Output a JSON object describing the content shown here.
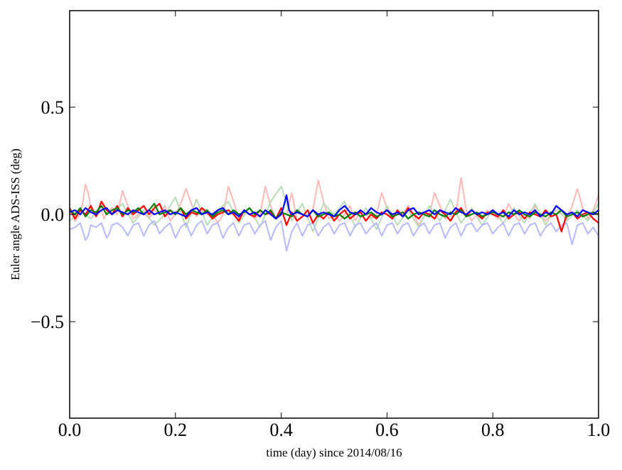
{
  "chart_data": {
    "type": "line",
    "title": "",
    "xlabel": "time (day) since 2014/08/16",
    "ylabel": "Euler angle ADS-ISS (deg)",
    "xlim": [
      0.0,
      1.0
    ],
    "ylim": [
      -0.95,
      0.95
    ],
    "x_ticks": [
      0.0,
      0.2,
      0.4,
      0.6,
      0.8,
      1.0
    ],
    "x_tick_labels": [
      "0.0",
      "0.2",
      "0.4",
      "0.6",
      "0.8",
      "1.0"
    ],
    "y_ticks": [
      0.5,
      0.0,
      -0.5
    ],
    "y_tick_labels": [
      "0.5",
      "0.0",
      "−0.5"
    ],
    "grid": false,
    "legend": "none",
    "series": [
      {
        "color": "#ffb8b8",
        "x": [
          0.0,
          0.01,
          0.02,
          0.025,
          0.03,
          0.035,
          0.04,
          0.05,
          0.06,
          0.065,
          0.07,
          0.08,
          0.09,
          0.1,
          0.11,
          0.12,
          0.13,
          0.14,
          0.15,
          0.16,
          0.17,
          0.18,
          0.19,
          0.2,
          0.21,
          0.22,
          0.23,
          0.24,
          0.25,
          0.26,
          0.27,
          0.28,
          0.29,
          0.3,
          0.31,
          0.32,
          0.33,
          0.34,
          0.35,
          0.36,
          0.37,
          0.38,
          0.39,
          0.4,
          0.41,
          0.42,
          0.43,
          0.44,
          0.45,
          0.46,
          0.47,
          0.48,
          0.49,
          0.5,
          0.51,
          0.52,
          0.53,
          0.54,
          0.55,
          0.56,
          0.57,
          0.58,
          0.59,
          0.6,
          0.61,
          0.62,
          0.63,
          0.64,
          0.65,
          0.66,
          0.67,
          0.68,
          0.69,
          0.7,
          0.71,
          0.72,
          0.73,
          0.74,
          0.75,
          0.76,
          0.77,
          0.78,
          0.79,
          0.8,
          0.81,
          0.82,
          0.83,
          0.84,
          0.85,
          0.86,
          0.87,
          0.88,
          0.89,
          0.9,
          0.91,
          0.92,
          0.93,
          0.94,
          0.95,
          0.96,
          0.97,
          0.98,
          0.99,
          1.0
        ],
        "y": [
          0.02,
          -0.03,
          0.0,
          0.06,
          0.14,
          0.1,
          0.03,
          -0.01,
          0.02,
          -0.02,
          0.01,
          0.03,
          0.0,
          0.11,
          0.04,
          -0.02,
          0.0,
          0.01,
          -0.02,
          0.02,
          0.0,
          0.04,
          -0.03,
          0.0,
          0.05,
          0.12,
          0.05,
          -0.01,
          0.02,
          0.0,
          0.0,
          -0.04,
          0.0,
          0.13,
          0.06,
          -0.02,
          0.01,
          0.0,
          -0.02,
          0.0,
          0.13,
          0.04,
          -0.02,
          0.01,
          0.0,
          0.1,
          -0.03,
          -0.01,
          0.0,
          0.02,
          0.16,
          0.06,
          -0.02,
          0.0,
          -0.03,
          0.0,
          0.04,
          -0.03,
          0.02,
          0.0,
          -0.02,
          0.0,
          0.1,
          0.03,
          -0.02,
          0.0,
          0.0,
          0.04,
          0.0,
          -0.05,
          -0.01,
          0.0,
          0.1,
          0.04,
          -0.02,
          -0.01,
          0.0,
          0.17,
          0.02,
          -0.03,
          0.0,
          -0.01,
          0.02,
          0.0,
          -0.02,
          -0.01,
          0.05,
          0.0,
          -0.03,
          0.0,
          -0.02,
          0.04,
          0.0,
          -0.03,
          0.0,
          0.02,
          0.0,
          -0.02,
          0.04,
          0.12,
          0.03,
          -0.02,
          0.02,
          0.09
        ]
      },
      {
        "color": "#b8dcb8",
        "x": [
          0.0,
          0.02,
          0.04,
          0.06,
          0.08,
          0.1,
          0.12,
          0.14,
          0.16,
          0.18,
          0.2,
          0.22,
          0.24,
          0.26,
          0.28,
          0.3,
          0.32,
          0.34,
          0.36,
          0.38,
          0.4,
          0.42,
          0.44,
          0.46,
          0.48,
          0.5,
          0.52,
          0.54,
          0.56,
          0.58,
          0.6,
          0.62,
          0.64,
          0.66,
          0.68,
          0.7,
          0.72,
          0.74,
          0.76,
          0.78,
          0.8,
          0.82,
          0.84,
          0.86,
          0.88,
          0.9,
          0.92,
          0.94,
          0.96,
          0.98,
          1.0
        ],
        "y": [
          -0.03,
          0.02,
          -0.02,
          0.04,
          0.0,
          0.05,
          -0.04,
          0.02,
          -0.05,
          0.0,
          0.08,
          -0.06,
          0.07,
          -0.05,
          0.02,
          0.06,
          -0.04,
          0.03,
          -0.06,
          0.06,
          0.13,
          -0.03,
          0.05,
          -0.08,
          0.05,
          0.0,
          0.06,
          -0.06,
          0.03,
          -0.07,
          0.04,
          -0.05,
          0.02,
          -0.06,
          0.04,
          -0.03,
          0.07,
          -0.04,
          0.03,
          -0.05,
          0.02,
          -0.04,
          0.03,
          -0.04,
          0.05,
          -0.05,
          0.04,
          -0.03,
          0.02,
          -0.03,
          0.05
        ]
      },
      {
        "color": "#b8b8ff",
        "x": [
          0.0,
          0.01,
          0.02,
          0.03,
          0.035,
          0.04,
          0.05,
          0.06,
          0.07,
          0.075,
          0.08,
          0.09,
          0.1,
          0.11,
          0.12,
          0.13,
          0.14,
          0.15,
          0.16,
          0.17,
          0.18,
          0.19,
          0.2,
          0.21,
          0.22,
          0.23,
          0.24,
          0.25,
          0.26,
          0.27,
          0.28,
          0.29,
          0.3,
          0.31,
          0.32,
          0.33,
          0.34,
          0.35,
          0.36,
          0.37,
          0.38,
          0.39,
          0.4,
          0.41,
          0.42,
          0.43,
          0.44,
          0.45,
          0.46,
          0.47,
          0.48,
          0.49,
          0.5,
          0.51,
          0.52,
          0.53,
          0.54,
          0.55,
          0.56,
          0.57,
          0.58,
          0.59,
          0.6,
          0.61,
          0.62,
          0.63,
          0.64,
          0.65,
          0.66,
          0.67,
          0.68,
          0.69,
          0.7,
          0.71,
          0.72,
          0.73,
          0.74,
          0.75,
          0.76,
          0.77,
          0.78,
          0.79,
          0.8,
          0.81,
          0.82,
          0.83,
          0.84,
          0.85,
          0.86,
          0.87,
          0.88,
          0.89,
          0.9,
          0.91,
          0.92,
          0.93,
          0.94,
          0.95,
          0.96,
          0.97,
          0.98,
          0.99,
          1.0
        ],
        "y": [
          -0.07,
          -0.06,
          -0.04,
          -0.12,
          -0.1,
          -0.05,
          -0.06,
          -0.04,
          -0.11,
          -0.09,
          -0.05,
          -0.04,
          -0.06,
          -0.1,
          -0.05,
          -0.04,
          -0.1,
          -0.05,
          -0.03,
          -0.09,
          -0.06,
          -0.04,
          -0.11,
          -0.06,
          -0.04,
          -0.1,
          -0.05,
          -0.03,
          -0.09,
          -0.05,
          -0.04,
          -0.11,
          -0.06,
          -0.04,
          -0.1,
          -0.05,
          -0.04,
          -0.09,
          -0.05,
          -0.03,
          -0.12,
          -0.06,
          -0.03,
          -0.17,
          -0.08,
          -0.04,
          -0.1,
          -0.05,
          -0.04,
          -0.1,
          -0.06,
          -0.04,
          -0.09,
          -0.05,
          -0.04,
          -0.1,
          -0.05,
          -0.04,
          -0.09,
          -0.06,
          -0.04,
          -0.1,
          -0.05,
          -0.04,
          -0.09,
          -0.05,
          -0.04,
          -0.1,
          -0.06,
          -0.04,
          -0.09,
          -0.05,
          -0.04,
          -0.11,
          -0.06,
          -0.04,
          -0.1,
          -0.05,
          -0.04,
          -0.08,
          -0.05,
          -0.04,
          -0.09,
          -0.06,
          -0.04,
          -0.1,
          -0.05,
          -0.04,
          -0.09,
          -0.05,
          -0.04,
          -0.1,
          -0.06,
          -0.04,
          -0.08,
          -0.05,
          -0.04,
          -0.14,
          -0.05,
          -0.04,
          -0.09,
          -0.06,
          -0.1
        ]
      },
      {
        "color": "#ff0000",
        "x": [
          0.0,
          0.01,
          0.02,
          0.03,
          0.04,
          0.05,
          0.06,
          0.07,
          0.08,
          0.09,
          0.1,
          0.11,
          0.12,
          0.13,
          0.14,
          0.15,
          0.16,
          0.17,
          0.18,
          0.19,
          0.2,
          0.21,
          0.22,
          0.23,
          0.24,
          0.25,
          0.26,
          0.27,
          0.28,
          0.29,
          0.3,
          0.31,
          0.32,
          0.33,
          0.34,
          0.35,
          0.36,
          0.37,
          0.38,
          0.39,
          0.4,
          0.41,
          0.42,
          0.43,
          0.44,
          0.45,
          0.46,
          0.47,
          0.48,
          0.49,
          0.5,
          0.51,
          0.52,
          0.53,
          0.54,
          0.55,
          0.56,
          0.57,
          0.58,
          0.59,
          0.6,
          0.61,
          0.62,
          0.63,
          0.64,
          0.65,
          0.66,
          0.67,
          0.68,
          0.69,
          0.7,
          0.71,
          0.72,
          0.73,
          0.74,
          0.75,
          0.76,
          0.77,
          0.78,
          0.79,
          0.8,
          0.81,
          0.82,
          0.83,
          0.84,
          0.85,
          0.86,
          0.87,
          0.88,
          0.89,
          0.9,
          0.91,
          0.92,
          0.93,
          0.94,
          0.95,
          0.96,
          0.97,
          0.98,
          0.99,
          1.0
        ],
        "y": [
          0.03,
          -0.02,
          0.02,
          0.0,
          0.04,
          -0.01,
          0.06,
          0.02,
          0.0,
          0.04,
          -0.01,
          0.03,
          0.0,
          0.02,
          0.04,
          0.0,
          0.03,
          0.05,
          -0.01,
          0.02,
          0.0,
          0.03,
          -0.02,
          0.01,
          0.0,
          0.03,
          0.01,
          -0.02,
          0.0,
          0.01,
          0.02,
          0.0,
          -0.03,
          0.02,
          0.0,
          -0.01,
          0.02,
          0.0,
          0.01,
          -0.02,
          0.03,
          -0.05,
          0.01,
          -0.03,
          -0.01,
          0.02,
          -0.04,
          0.0,
          -0.02,
          0.01,
          -0.03,
          0.0,
          0.02,
          -0.02,
          0.0,
          0.01,
          -0.03,
          0.0,
          -0.02,
          0.01,
          0.0,
          -0.02,
          0.02,
          -0.01,
          0.03,
          0.0,
          -0.02,
          0.01,
          0.0,
          -0.02,
          0.02,
          0.0,
          -0.03,
          0.01,
          0.03,
          -0.01,
          0.02,
          0.0,
          -0.02,
          0.01,
          0.0,
          -0.01,
          0.02,
          -0.02,
          0.0,
          0.01,
          -0.02,
          0.01,
          0.0,
          -0.01,
          0.02,
          -0.01,
          0.0,
          -0.08,
          0.0,
          0.01,
          -0.02,
          0.0,
          0.01,
          -0.02,
          -0.04
        ]
      },
      {
        "color": "#008000",
        "x": [
          0.0,
          0.01,
          0.02,
          0.03,
          0.04,
          0.05,
          0.06,
          0.07,
          0.08,
          0.09,
          0.1,
          0.11,
          0.12,
          0.13,
          0.14,
          0.15,
          0.16,
          0.17,
          0.18,
          0.19,
          0.2,
          0.21,
          0.22,
          0.23,
          0.24,
          0.25,
          0.26,
          0.27,
          0.28,
          0.29,
          0.3,
          0.31,
          0.32,
          0.33,
          0.34,
          0.35,
          0.36,
          0.37,
          0.38,
          0.39,
          0.4,
          0.41,
          0.42,
          0.43,
          0.44,
          0.45,
          0.46,
          0.47,
          0.48,
          0.49,
          0.5,
          0.51,
          0.52,
          0.53,
          0.54,
          0.55,
          0.56,
          0.57,
          0.58,
          0.59,
          0.6,
          0.61,
          0.62,
          0.63,
          0.64,
          0.65,
          0.66,
          0.67,
          0.68,
          0.69,
          0.7,
          0.71,
          0.72,
          0.73,
          0.74,
          0.75,
          0.76,
          0.77,
          0.78,
          0.79,
          0.8,
          0.81,
          0.82,
          0.83,
          0.84,
          0.85,
          0.86,
          0.87,
          0.88,
          0.89,
          0.9,
          0.91,
          0.92,
          0.93,
          0.94,
          0.95,
          0.96,
          0.97,
          0.98,
          0.99,
          1.0
        ],
        "y": [
          0.02,
          0.0,
          0.03,
          -0.01,
          0.02,
          0.01,
          0.04,
          0.0,
          0.02,
          0.03,
          0.0,
          0.02,
          0.01,
          0.03,
          0.0,
          0.02,
          0.05,
          0.0,
          0.01,
          0.02,
          0.0,
          0.03,
          0.0,
          0.02,
          0.01,
          0.0,
          0.02,
          -0.01,
          0.01,
          0.02,
          0.0,
          0.02,
          0.0,
          0.01,
          0.03,
          0.0,
          0.02,
          0.0,
          0.02,
          -0.02,
          0.01,
          0.0,
          -0.01,
          0.02,
          0.0,
          -0.01,
          0.02,
          -0.01,
          0.0,
          0.01,
          -0.01,
          0.0,
          -0.02,
          0.0,
          0.01,
          -0.01,
          0.0,
          0.01,
          -0.01,
          0.0,
          0.02,
          -0.01,
          0.0,
          0.01,
          -0.02,
          0.0,
          0.01,
          0.0,
          -0.01,
          0.02,
          0.0,
          -0.01,
          0.01,
          0.0,
          0.02,
          -0.01,
          0.0,
          0.01,
          -0.01,
          0.0,
          0.01,
          0.0,
          -0.01,
          0.01,
          0.0,
          0.02,
          0.0,
          -0.01,
          0.01,
          0.0,
          -0.01,
          0.01,
          0.0,
          0.02,
          -0.01,
          0.0,
          0.01,
          -0.01,
          0.0,
          0.01,
          0.0
        ]
      },
      {
        "color": "#0000ff",
        "x": [
          0.0,
          0.01,
          0.02,
          0.03,
          0.04,
          0.05,
          0.06,
          0.07,
          0.08,
          0.09,
          0.1,
          0.11,
          0.12,
          0.13,
          0.14,
          0.15,
          0.16,
          0.17,
          0.18,
          0.19,
          0.2,
          0.21,
          0.22,
          0.23,
          0.24,
          0.25,
          0.26,
          0.27,
          0.28,
          0.29,
          0.3,
          0.31,
          0.32,
          0.33,
          0.34,
          0.35,
          0.36,
          0.37,
          0.38,
          0.39,
          0.4,
          0.405,
          0.41,
          0.415,
          0.42,
          0.43,
          0.44,
          0.45,
          0.46,
          0.47,
          0.48,
          0.49,
          0.5,
          0.51,
          0.52,
          0.53,
          0.54,
          0.55,
          0.56,
          0.57,
          0.58,
          0.59,
          0.6,
          0.61,
          0.62,
          0.63,
          0.64,
          0.65,
          0.66,
          0.67,
          0.68,
          0.69,
          0.7,
          0.71,
          0.72,
          0.73,
          0.74,
          0.75,
          0.76,
          0.77,
          0.78,
          0.79,
          0.8,
          0.81,
          0.82,
          0.83,
          0.84,
          0.85,
          0.86,
          0.87,
          0.88,
          0.89,
          0.9,
          0.91,
          0.92,
          0.93,
          0.94,
          0.95,
          0.96,
          0.97,
          0.98,
          0.99,
          1.0
        ],
        "y": [
          0.01,
          0.02,
          0.0,
          0.03,
          0.01,
          0.0,
          0.02,
          0.03,
          0.0,
          0.02,
          0.01,
          0.0,
          0.02,
          0.01,
          0.0,
          0.02,
          0.0,
          0.01,
          0.02,
          0.0,
          0.01,
          0.0,
          -0.01,
          0.02,
          0.03,
          0.0,
          0.01,
          0.0,
          0.02,
          0.03,
          0.0,
          0.01,
          -0.01,
          0.02,
          0.0,
          0.01,
          -0.01,
          0.02,
          0.0,
          -0.02,
          0.0,
          0.04,
          0.09,
          0.02,
          0.0,
          0.01,
          0.0,
          -0.01,
          0.02,
          0.0,
          0.01,
          0.0,
          -0.01,
          0.02,
          0.04,
          0.01,
          0.0,
          0.02,
          0.0,
          0.03,
          0.01,
          0.0,
          0.02,
          0.0,
          0.01,
          -0.01,
          0.02,
          0.03,
          0.0,
          0.01,
          0.02,
          0.0,
          0.02,
          0.01,
          0.0,
          0.03,
          0.01,
          0.0,
          0.02,
          0.0,
          0.01,
          0.0,
          0.02,
          0.0,
          0.01,
          -0.01,
          0.02,
          0.0,
          0.01,
          0.0,
          0.02,
          -0.01,
          0.01,
          0.0,
          0.04,
          0.02,
          0.0,
          0.01,
          -0.01,
          0.02,
          0.01,
          0.0,
          0.02
        ]
      }
    ]
  }
}
